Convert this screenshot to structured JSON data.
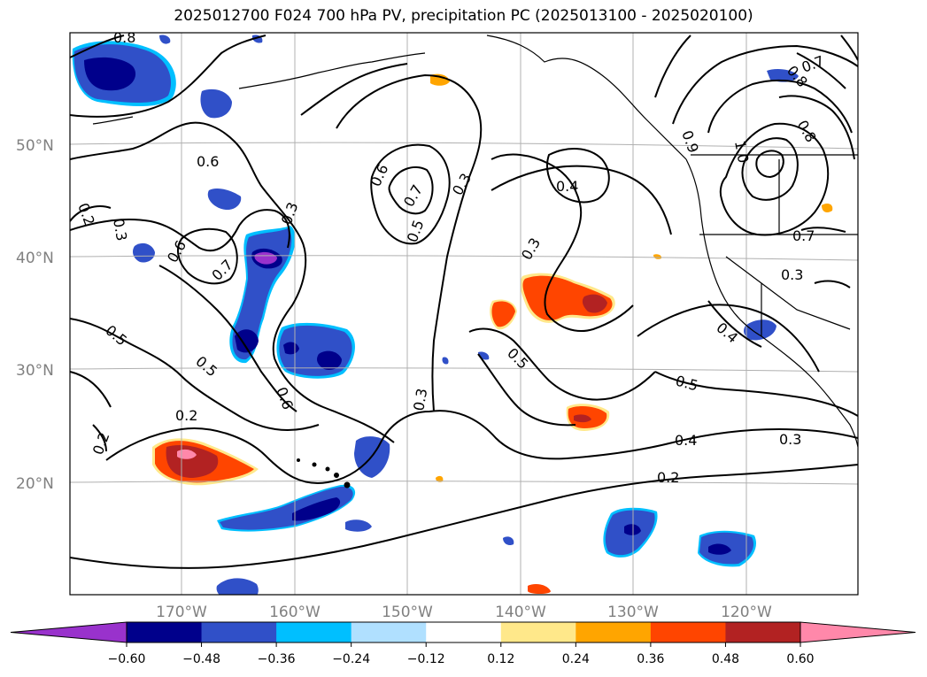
{
  "title": "2025012700 F024 700 hPa PV, precipitation PC (2025013100 - 2025020100)",
  "map": {
    "lat_labels": [
      "50°N",
      "40°N",
      "30°N",
      "20°N"
    ],
    "lon_labels": [
      "170°W",
      "160°W",
      "150°W",
      "140°W",
      "130°W",
      "120°W"
    ]
  },
  "contour_labels": [
    "0.2",
    "0.2",
    "0.2",
    "0.2",
    "0.3",
    "0.3",
    "0.3",
    "0.3",
    "0.3",
    "0.3",
    "0.3",
    "0.4",
    "0.4",
    "0.4",
    "0.5",
    "0.5",
    "0.5",
    "0.5",
    "0.5",
    "0.6",
    "0.6",
    "0.6",
    "0.6",
    "0.7",
    "0.7",
    "0.7",
    "0.7",
    "0.8",
    "0.8",
    "0.8",
    "0.9",
    "1.0"
  ],
  "colorbar": {
    "ticks": [
      "−0.60",
      "−0.48",
      "−0.36",
      "−0.24",
      "−0.12",
      "0.12",
      "0.24",
      "0.36",
      "0.48",
      "0.60"
    ],
    "colors": [
      "#9932cc",
      "#00008b",
      "#3050c8",
      "#00bfff",
      "#b0e0ff",
      "#ffffff",
      "#ffe88a",
      "#ffa500",
      "#ff4500",
      "#b22222",
      "#ff88aa"
    ]
  }
}
